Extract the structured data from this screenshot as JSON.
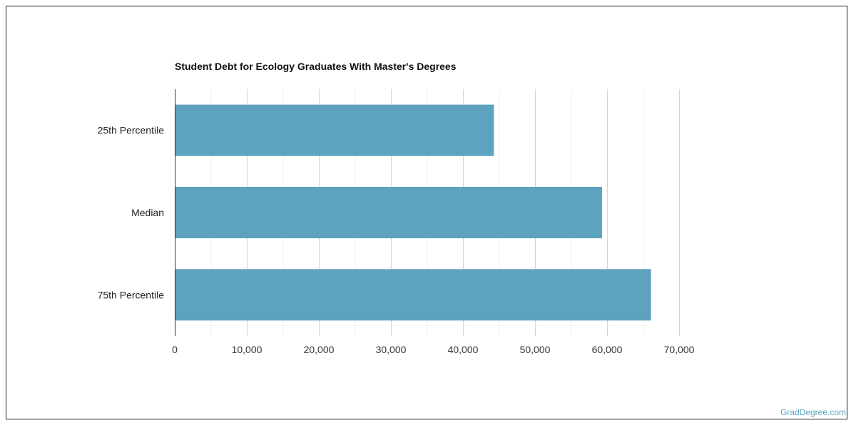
{
  "chart_data": {
    "type": "bar",
    "orientation": "horizontal",
    "title": "Student Debt for Ecology Graduates With Master's Degrees",
    "categories": [
      "25th Percentile",
      "Median",
      "75th Percentile"
    ],
    "values": [
      44300,
      59300,
      66100
    ],
    "xlim": [
      0,
      70000
    ],
    "x_ticks": [
      0,
      10000,
      20000,
      30000,
      40000,
      50000,
      60000,
      70000
    ],
    "x_tick_labels": [
      "0",
      "10,000",
      "20,000",
      "30,000",
      "40,000",
      "50,000",
      "60,000",
      "70,000"
    ],
    "grid": true,
    "legend": "none",
    "bar_color": "#5da2be"
  },
  "footer": {
    "source": "GradDegree.com",
    "source_color": "#5da2be"
  }
}
